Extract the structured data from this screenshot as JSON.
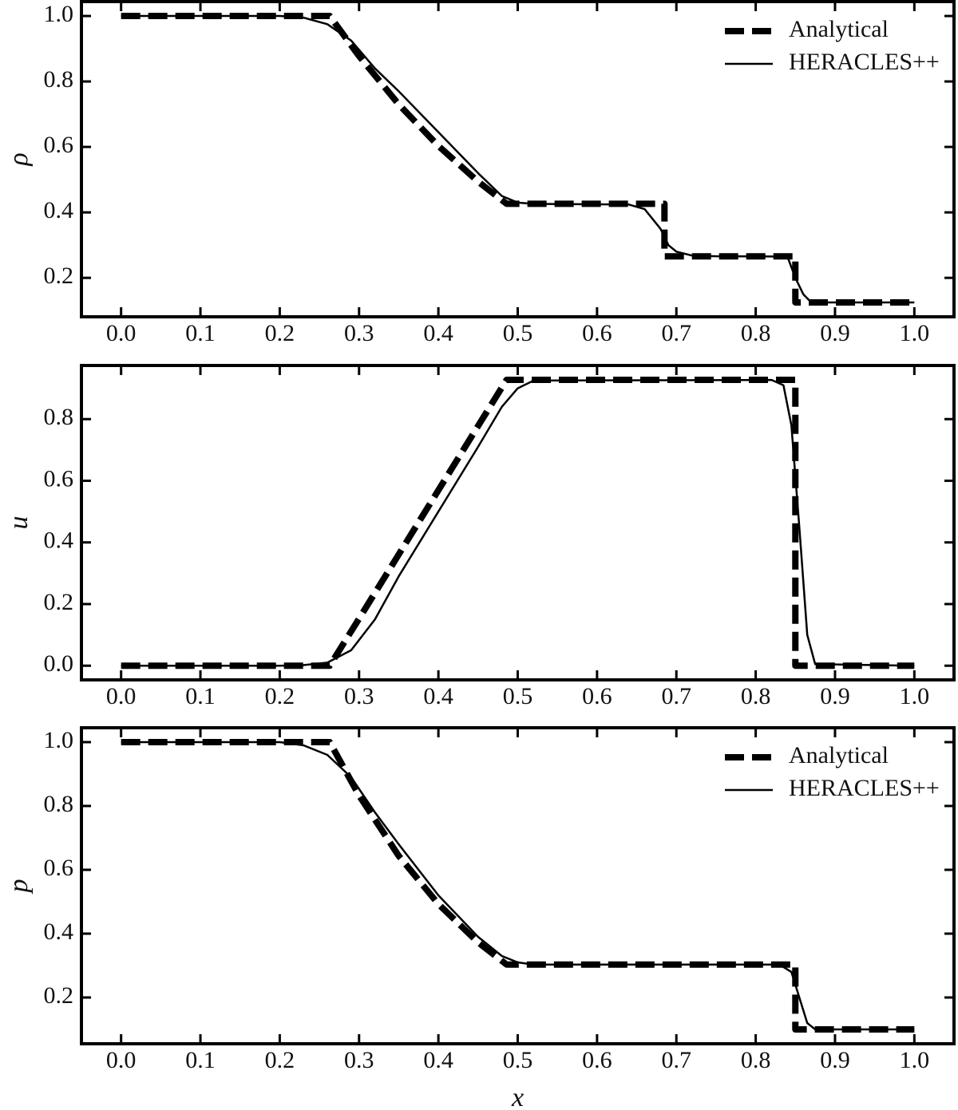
{
  "chart_data": [
    {
      "type": "line",
      "ylabel": "ρ",
      "legend": "upper right",
      "xlim": [
        -0.05,
        1.05
      ],
      "ylim": [
        0.081,
        1.044
      ],
      "xticks": [
        {
          "value": 0,
          "label": "0.0"
        },
        0.1,
        0.2,
        0.3,
        0.4,
        0.5,
        0.6,
        0.7,
        0.8,
        0.9,
        {
          "value": 1,
          "label": "1.0"
        }
      ],
      "yticks": [
        0.2,
        0.4,
        0.6,
        0.8,
        {
          "value": 1,
          "label": "1.0"
        }
      ],
      "series": [
        {
          "name": "Analytical",
          "color": "#000000",
          "linestyle": "dashed",
          "x": [
            0,
            0.263,
            0.3,
            0.35,
            0.4,
            0.45,
            0.486,
            0.685,
            0.685,
            0.85,
            0.85,
            1
          ],
          "values": [
            1,
            1,
            0.8776,
            0.73,
            0.6031,
            0.4942,
            0.4263,
            0.4263,
            0.2656,
            0.2656,
            0.125,
            0.125
          ]
        },
        {
          "name": "HERACLES++",
          "color": "#000000",
          "linestyle": "solid",
          "x": [
            0,
            0.2,
            0.23,
            0.26,
            0.29,
            0.32,
            0.35,
            0.4,
            0.45,
            0.48,
            0.5,
            0.52,
            0.64,
            0.66,
            0.68,
            0.69,
            0.7,
            0.72,
            0.75,
            0.84,
            0.85,
            0.86,
            0.87,
            1
          ],
          "values": [
            1,
            1,
            0.995,
            0.975,
            0.925,
            0.84,
            0.77,
            0.645,
            0.52,
            0.45,
            0.43,
            0.426,
            0.424,
            0.41,
            0.35,
            0.3,
            0.28,
            0.268,
            0.266,
            0.265,
            0.2,
            0.15,
            0.125,
            0.125
          ]
        }
      ]
    },
    {
      "type": "line",
      "ylabel": "u",
      "legend": false,
      "xlim": [
        -0.05,
        1.05
      ],
      "ylim": [
        -0.046,
        0.974
      ],
      "xticks": [
        {
          "value": 0,
          "label": "0.0"
        },
        0.1,
        0.2,
        0.3,
        0.4,
        0.5,
        0.6,
        0.7,
        0.8,
        0.9,
        {
          "value": 1,
          "label": "1.0"
        }
      ],
      "yticks": [
        {
          "value": 0,
          "label": "0.0"
        },
        0.2,
        0.4,
        0.6,
        0.8
      ],
      "series": [
        {
          "color": "#000000",
          "linestyle": "dashed",
          "x": [
            0,
            0.263,
            0.3,
            0.35,
            0.4,
            0.45,
            0.486,
            0.85,
            0.85,
            1
          ],
          "values": [
            0,
            0,
            0.1527,
            0.361,
            0.5693,
            0.7777,
            0.9275,
            0.9275,
            0,
            0
          ]
        },
        {
          "color": "#000000",
          "linestyle": "solid",
          "x": [
            0,
            0.2,
            0.23,
            0.26,
            0.29,
            0.32,
            0.35,
            0.4,
            0.45,
            0.48,
            0.5,
            0.52,
            0.82,
            0.835,
            0.845,
            0.855,
            0.865,
            0.875,
            1
          ],
          "values": [
            0,
            0,
            0.002,
            0.01,
            0.05,
            0.15,
            0.29,
            0.5,
            0.71,
            0.84,
            0.9,
            0.925,
            0.927,
            0.91,
            0.78,
            0.45,
            0.1,
            0.005,
            0
          ]
        }
      ]
    },
    {
      "type": "line",
      "ylabel": "p",
      "xlabel": "x",
      "legend": "upper right",
      "xlim": [
        -0.05,
        1.05
      ],
      "ylim": [
        0.055,
        1.045
      ],
      "xticks": [
        {
          "value": 0,
          "label": "0.0"
        },
        0.1,
        0.2,
        0.3,
        0.4,
        0.5,
        0.6,
        0.7,
        0.8,
        0.9,
        {
          "value": 1,
          "label": "1.0"
        }
      ],
      "yticks": [
        0.2,
        0.4,
        0.6,
        0.8,
        {
          "value": 1,
          "label": "1.0"
        }
      ],
      "series": [
        {
          "name": "Analytical",
          "color": "#000000",
          "linestyle": "dashed",
          "x": [
            0,
            0.263,
            0.3,
            0.35,
            0.4,
            0.45,
            0.486,
            0.85,
            0.85,
            1
          ],
          "values": [
            1,
            1,
            0.8329,
            0.6437,
            0.4927,
            0.3728,
            0.3031,
            0.3031,
            0.1,
            0.1
          ]
        },
        {
          "name": "HERACLES++",
          "color": "#000000",
          "linestyle": "solid",
          "x": [
            0,
            0.2,
            0.23,
            0.26,
            0.29,
            0.32,
            0.35,
            0.4,
            0.45,
            0.48,
            0.5,
            0.52,
            0.83,
            0.845,
            0.855,
            0.865,
            0.875,
            1
          ],
          "values": [
            1,
            1,
            0.99,
            0.96,
            0.89,
            0.78,
            0.68,
            0.52,
            0.39,
            0.33,
            0.31,
            0.303,
            0.303,
            0.28,
            0.2,
            0.12,
            0.1,
            0.1
          ]
        }
      ]
    }
  ]
}
